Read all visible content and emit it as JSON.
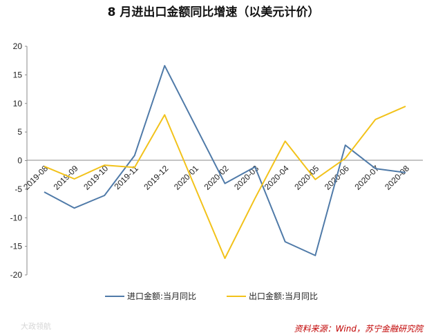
{
  "chart_data": {
    "type": "line",
    "title": "8 月进出口金额同比增速（以美元计价）",
    "categories": [
      "2019-08",
      "2019-09",
      "2019-10",
      "2019-11",
      "2019-12",
      "2020-01",
      "2020-02",
      "2020-03",
      "2020-04",
      "2020-05",
      "2020-06",
      "2020-07",
      "2020-08"
    ],
    "series": [
      {
        "name": "进口金额:当月同比",
        "color": "#4f7aa8",
        "values": [
          -5.5,
          -8.3,
          -6.1,
          0.9,
          16.6,
          null,
          -4.0,
          -1.1,
          -14.2,
          -16.6,
          2.7,
          -1.4,
          -2.1
        ]
      },
      {
        "name": "出口金额:当月同比",
        "color": "#f2c21a",
        "values": [
          -1.0,
          -3.2,
          -0.8,
          -1.2,
          8.0,
          null,
          -17.1,
          -6.6,
          3.4,
          -3.3,
          0.4,
          7.2,
          9.5
        ]
      }
    ],
    "yticks": [
      20,
      15,
      10,
      5,
      0,
      -5,
      -10,
      -15,
      -20
    ],
    "ylim": [
      -20,
      20
    ],
    "xlabel": "",
    "ylabel": "",
    "grid": false,
    "legend": "bottom"
  },
  "source_note": "资料来源：Wind，苏宁金融研究院",
  "watermark": "大政领航"
}
